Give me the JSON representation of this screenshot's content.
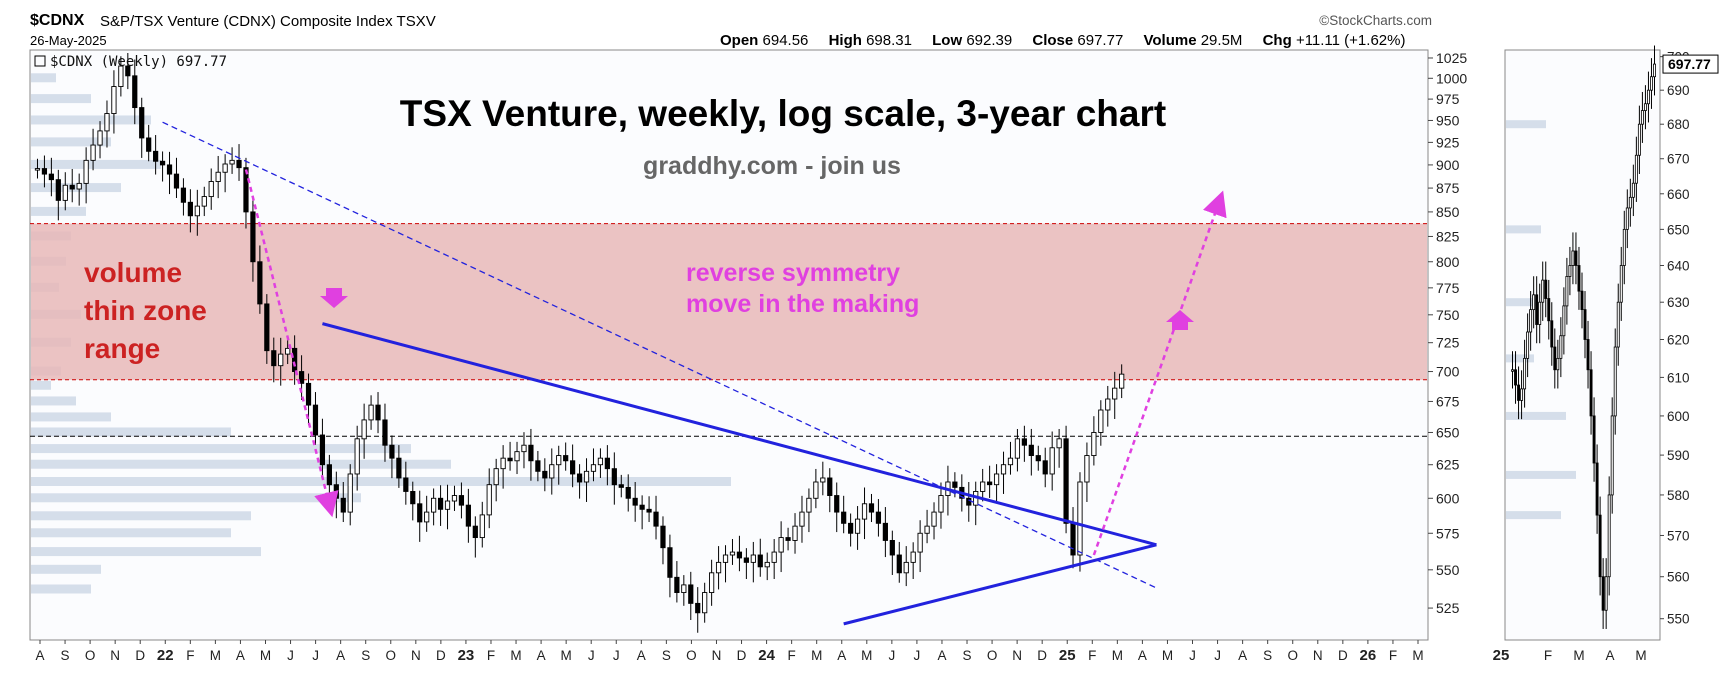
{
  "header": {
    "symbol": "$CDNX",
    "name": "S&P/TSX Venture (CDNX) Composite Index",
    "exchange": "TSXV",
    "date": "26-May-2025",
    "source": "©StockCharts.com",
    "ohlc": {
      "open_label": "Open",
      "open": "694.56",
      "high_label": "High",
      "high": "698.31",
      "low_label": "Low",
      "low": "692.39",
      "close_label": "Close",
      "close": "697.77",
      "volume_label": "Volume",
      "volume": "29.5M",
      "chg_label": "Chg",
      "chg": "+11.11 (+1.62%)"
    }
  },
  "colors": {
    "zone": "#e8b8b8",
    "trendline": "#2222dd",
    "magenta": "#e040e0",
    "zone_label": "#cc2222",
    "title": "#000000",
    "subtitle": "#666666",
    "volume_bars": "#d5deea"
  },
  "chart_data": [
    {
      "type": "candlestick",
      "legend_label": "$CDNX (Weekly) 697.77",
      "scale": "log",
      "ylim": [
        505,
        1035
      ],
      "y_ticks": [
        525,
        550,
        575,
        600,
        625,
        650,
        675,
        700,
        725,
        750,
        775,
        800,
        825,
        850,
        875,
        900,
        925,
        950,
        975,
        1000,
        1025
      ],
      "x_ticks": [
        "A",
        "S",
        "O",
        "N",
        "D",
        "22",
        "F",
        "M",
        "A",
        "M",
        "J",
        "J",
        "A",
        "S",
        "O",
        "N",
        "D",
        "23",
        "F",
        "M",
        "A",
        "M",
        "J",
        "J",
        "A",
        "S",
        "O",
        "N",
        "D",
        "24",
        "F",
        "M",
        "A",
        "M",
        "J",
        "J",
        "A",
        "S",
        "O",
        "N",
        "D",
        "25",
        "F",
        "M",
        "A",
        "M",
        "J",
        "J",
        "A",
        "S",
        "O",
        "N",
        "D",
        "26",
        "F",
        "M"
      ],
      "annotations": {
        "title": "TSX Venture, weekly, log scale, 3-year chart",
        "subtitle": "graddhy.com - join us",
        "zone_label_lines": [
          "volume",
          "thin zone",
          "range"
        ],
        "symmetry_label_lines": [
          "reverse symmetry",
          "move in the making"
        ]
      },
      "volume_thin_zone": [
        693,
        838
      ],
      "horizontal_levels": {
        "zone_top": 838,
        "zone_bottom": 693,
        "support": 647
      },
      "weekly_closes": [
        896,
        890,
        884,
        862,
        878,
        874,
        880,
        905,
        922,
        938,
        958,
        990,
        1015,
        1003,
        965,
        930,
        915,
        904,
        900,
        890,
        875,
        860,
        846,
        856,
        866,
        882,
        892,
        901,
        905,
        897,
        850,
        800,
        760,
        718,
        705,
        715,
        720,
        700,
        690,
        672,
        648,
        625,
        610,
        600,
        590,
        618,
        645,
        660,
        672,
        660,
        640,
        630,
        615,
        605,
        596,
        583,
        590,
        600,
        592,
        598,
        602,
        595,
        580,
        572,
        588,
        610,
        622,
        630,
        628,
        635,
        640,
        628,
        620,
        615,
        625,
        632,
        628,
        618,
        612,
        620,
        625,
        630,
        622,
        610,
        608,
        600,
        595,
        592,
        590,
        580,
        565,
        545,
        535,
        540,
        528,
        522,
        535,
        548,
        555,
        560,
        562,
        558,
        555,
        560,
        552,
        555,
        562,
        572,
        570,
        580,
        590,
        600,
        612,
        615,
        602,
        590,
        582,
        575,
        585,
        596,
        590,
        582,
        570,
        560,
        548,
        555,
        562,
        575,
        580,
        590,
        602,
        612,
        608,
        600,
        595,
        605,
        612,
        610,
        618,
        625,
        630,
        645,
        640,
        632,
        628,
        618,
        638,
        645,
        582,
        560,
        612,
        632,
        650,
        668,
        677,
        686,
        697.77
      ],
      "triangle": {
        "upper": [
          {
            "week": 41,
            "value": 742
          },
          {
            "week": 161,
            "value": 567
          }
        ],
        "lower": [
          {
            "week": 116,
            "value": 515
          },
          {
            "week": 161,
            "value": 567
          }
        ]
      },
      "dashed_trendline": [
        {
          "week": 18,
          "value": 948
        },
        {
          "week": 161,
          "value": 538
        }
      ],
      "arrows": [
        {
          "from": {
            "week": 30,
            "value": 895
          },
          "to": {
            "week": 42,
            "value": 595
          }
        },
        {
          "from": {
            "week": 152,
            "value": 560
          },
          "to": {
            "week": 170,
            "value": 860
          }
        }
      ]
    },
    {
      "type": "candlestick",
      "scale": "log",
      "ylim": [
        545,
        702
      ],
      "y_ticks": [
        550,
        560,
        570,
        580,
        590,
        600,
        610,
        620,
        630,
        640,
        650,
        660,
        670,
        680,
        690,
        700
      ],
      "x_ticks": [
        "25",
        "F",
        "M",
        "A",
        "M"
      ],
      "last_value_label": "697.77",
      "daily_closes": [
        612,
        608,
        604,
        607,
        615,
        622,
        628,
        632,
        624,
        630,
        636,
        631,
        625,
        618,
        612,
        615,
        621,
        629,
        637,
        640,
        644,
        640,
        633,
        628,
        620,
        612,
        600,
        588,
        575,
        560,
        552,
        560,
        580,
        600,
        618,
        630,
        640,
        650,
        656,
        659,
        663,
        671,
        680,
        684,
        686,
        690,
        694,
        697.77
      ]
    }
  ]
}
